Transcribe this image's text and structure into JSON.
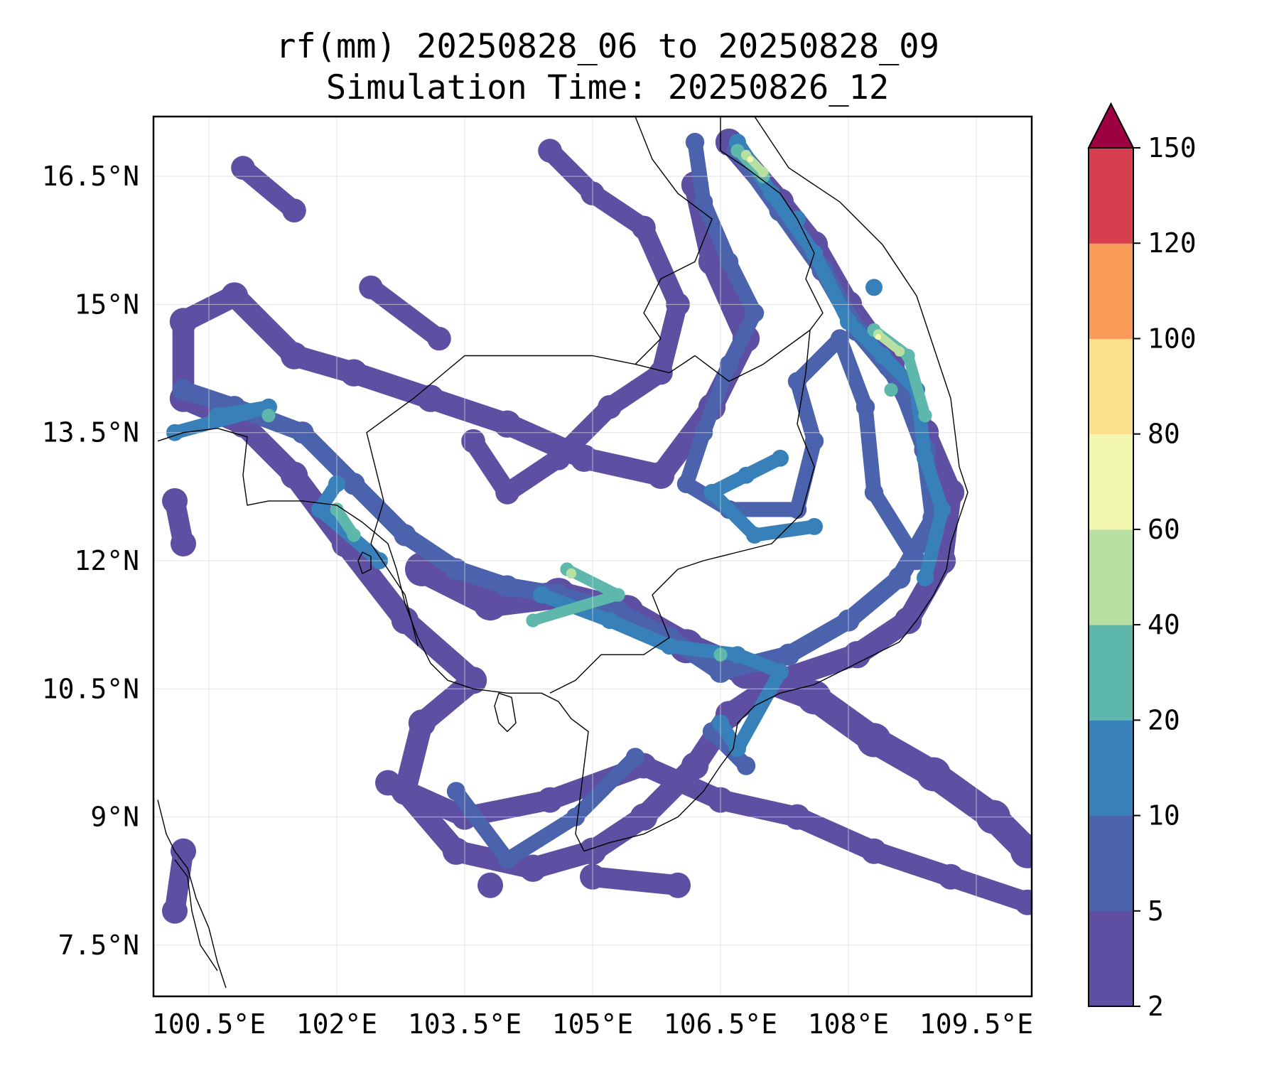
{
  "title": {
    "line1": "rf(mm) 20250828_06 to 20250828_09",
    "line2": "Simulation Time: 20250826_12"
  },
  "map": {
    "lon_range": [
      99.85,
      110.15
    ],
    "lat_range": [
      6.9,
      17.2
    ],
    "lon_ticks": [
      {
        "value": 100.5,
        "label": "100.5°E"
      },
      {
        "value": 102,
        "label": "102°E"
      },
      {
        "value": 103.5,
        "label": "103.5°E"
      },
      {
        "value": 105,
        "label": "105°E"
      },
      {
        "value": 106.5,
        "label": "106.5°E"
      },
      {
        "value": 108,
        "label": "108°E"
      },
      {
        "value": 109.5,
        "label": "109.5°E"
      }
    ],
    "lat_ticks": [
      {
        "value": 16.5,
        "label": "16.5°N"
      },
      {
        "value": 15,
        "label": "15°N"
      },
      {
        "value": 13.5,
        "label": "13.5°N"
      },
      {
        "value": 12,
        "label": "12°N"
      },
      {
        "value": 10.5,
        "label": "10.5°N"
      },
      {
        "value": 9,
        "label": "9°N"
      },
      {
        "value": 7.5,
        "label": "7.5°N"
      }
    ],
    "gridlines": true,
    "coastline_color": "#000000"
  },
  "colorbar": {
    "levels": [
      2,
      5,
      10,
      20,
      40,
      60,
      80,
      100,
      120,
      150
    ],
    "labels": [
      "2",
      "5",
      "10",
      "20",
      "40",
      "60",
      "80",
      "100",
      "120",
      "150"
    ],
    "colors": [
      "#5e4fa2",
      "#4b62ad",
      "#3880b9",
      "#5db8ab",
      "#b7e0a2",
      "#f2f8b0",
      "#fde08b",
      "#f99b59",
      "#d6404e"
    ],
    "extend_color": "#9e0142",
    "extend": "max"
  },
  "rain_fields": [
    {
      "level": 2,
      "points": [
        [
          106.6,
          16.9
        ],
        [
          107.2,
          16.2
        ],
        [
          107.6,
          15.7
        ],
        [
          108.0,
          15.0
        ],
        [
          108.5,
          14.3
        ],
        [
          108.9,
          13.5
        ],
        [
          109.2,
          12.8
        ],
        [
          109.1,
          12.0
        ],
        [
          108.7,
          11.3
        ],
        [
          108.1,
          10.9
        ],
        [
          107.2,
          10.6
        ],
        [
          106.6,
          10.2
        ],
        [
          106.2,
          9.6
        ],
        [
          105.6,
          9.0
        ],
        [
          105.0,
          8.6
        ],
        [
          104.3,
          8.4
        ],
        [
          103.4,
          8.6
        ],
        [
          102.8,
          9.3
        ],
        [
          103.0,
          10.1
        ],
        [
          103.6,
          10.6
        ],
        [
          102.8,
          11.3
        ],
        [
          102.1,
          12.2
        ],
        [
          101.5,
          13.0
        ],
        [
          100.9,
          13.6
        ],
        [
          100.2,
          13.9
        ],
        [
          100.2,
          14.8
        ],
        [
          100.8,
          15.1
        ],
        [
          101.5,
          14.4
        ],
        [
          102.2,
          14.2
        ],
        [
          103.1,
          13.9
        ],
        [
          104.0,
          13.6
        ],
        [
          104.9,
          13.2
        ],
        [
          105.8,
          13.0
        ],
        [
          106.4,
          13.8
        ],
        [
          106.8,
          14.6
        ],
        [
          106.4,
          15.5
        ],
        [
          106.2,
          16.4
        ]
      ],
      "r": 0.16
    },
    {
      "level": 2,
      "points": [
        [
          103.0,
          11.9
        ],
        [
          103.8,
          11.5
        ],
        [
          104.6,
          11.6
        ],
        [
          105.4,
          11.4
        ],
        [
          106.1,
          11.0
        ],
        [
          106.8,
          10.7
        ],
        [
          107.6,
          10.4
        ],
        [
          108.3,
          9.9
        ],
        [
          109.0,
          9.5
        ],
        [
          109.7,
          9.0
        ],
        [
          110.1,
          8.6
        ]
      ],
      "r": 0.2
    },
    {
      "level": 2,
      "points": [
        [
          104.5,
          16.8
        ],
        [
          105.0,
          16.3
        ],
        [
          105.6,
          15.9
        ],
        [
          106.0,
          15.0
        ],
        [
          105.8,
          14.2
        ],
        [
          105.2,
          13.8
        ],
        [
          104.6,
          13.2
        ],
        [
          104.0,
          12.8
        ],
        [
          103.6,
          13.4
        ],
        [
          103.2,
          14.6
        ],
        [
          102.4,
          15.2
        ],
        [
          101.5,
          16.1
        ],
        [
          100.9,
          16.6
        ]
      ],
      "r": 0.14
    },
    {
      "level": 2,
      "points": [
        [
          102.6,
          9.4
        ],
        [
          103.5,
          9.0
        ],
        [
          104.5,
          9.2
        ],
        [
          105.6,
          9.6
        ],
        [
          106.5,
          9.2
        ],
        [
          107.4,
          9.0
        ],
        [
          108.3,
          8.6
        ],
        [
          109.2,
          8.3
        ],
        [
          110.1,
          8.0
        ],
        [
          106.0,
          8.2
        ],
        [
          105.0,
          8.3
        ],
        [
          103.8,
          8.2
        ],
        [
          100.1,
          7.9
        ],
        [
          100.2,
          8.6
        ],
        [
          100.1,
          12.7
        ],
        [
          100.2,
          12.2
        ]
      ],
      "r": 0.15
    },
    {
      "level": 5,
      "points": [
        [
          106.7,
          16.8
        ],
        [
          107.2,
          16.1
        ],
        [
          107.7,
          15.4
        ],
        [
          108.1,
          14.7
        ],
        [
          108.6,
          14.1
        ],
        [
          108.9,
          13.3
        ],
        [
          109.0,
          12.5
        ],
        [
          108.6,
          11.8
        ],
        [
          108.0,
          11.3
        ],
        [
          107.3,
          10.9
        ],
        [
          106.5,
          10.7
        ],
        [
          105.9,
          11.1
        ],
        [
          105.3,
          11.4
        ],
        [
          104.6,
          11.6
        ],
        [
          104.0,
          11.7
        ],
        [
          103.4,
          11.9
        ],
        [
          102.8,
          12.3
        ],
        [
          102.2,
          12.9
        ],
        [
          101.6,
          13.5
        ],
        [
          100.8,
          13.8
        ],
        [
          100.2,
          14.0
        ]
      ],
      "r": 0.13
    },
    {
      "level": 5,
      "points": [
        [
          106.2,
          16.9
        ],
        [
          106.3,
          16.2
        ],
        [
          106.6,
          15.5
        ],
        [
          106.9,
          14.9
        ],
        [
          106.6,
          14.3
        ],
        [
          106.3,
          13.5
        ],
        [
          106.1,
          12.9
        ],
        [
          106.6,
          12.6
        ],
        [
          107.4,
          12.6
        ],
        [
          107.6,
          13.4
        ],
        [
          107.4,
          14.1
        ],
        [
          107.9,
          14.6
        ],
        [
          108.2,
          13.8
        ],
        [
          108.3,
          12.8
        ],
        [
          108.8,
          12.0
        ],
        [
          105.5,
          9.7
        ],
        [
          104.8,
          9.0
        ],
        [
          104.0,
          8.5
        ],
        [
          103.4,
          9.3
        ],
        [
          106.8,
          9.6
        ],
        [
          106.4,
          10.0
        ]
      ],
      "r": 0.11
    },
    {
      "level": 10,
      "points": [
        [
          106.7,
          16.9
        ],
        [
          107.1,
          16.3
        ],
        [
          107.6,
          15.6
        ],
        [
          108.0,
          14.8
        ],
        [
          108.4,
          14.4
        ],
        [
          108.8,
          14.0
        ],
        [
          108.9,
          13.2
        ],
        [
          109.1,
          12.6
        ],
        [
          108.9,
          11.8
        ],
        [
          106.8,
          13.0
        ],
        [
          107.2,
          13.2
        ],
        [
          106.4,
          12.8
        ],
        [
          106.9,
          12.3
        ],
        [
          107.6,
          12.4
        ],
        [
          104.4,
          11.6
        ],
        [
          105.2,
          11.3
        ],
        [
          105.9,
          11.0
        ],
        [
          106.7,
          10.9
        ],
        [
          107.2,
          10.7
        ],
        [
          106.7,
          9.8
        ],
        [
          106.5,
          10.1
        ],
        [
          102.0,
          12.9
        ],
        [
          101.8,
          12.6
        ],
        [
          102.5,
          12.0
        ],
        [
          100.6,
          13.7
        ],
        [
          101.2,
          13.8
        ],
        [
          100.1,
          13.5
        ],
        [
          107.4,
          16.0
        ],
        [
          108.3,
          15.2
        ]
      ],
      "r": 0.1
    },
    {
      "level": 20,
      "points": [
        [
          106.7,
          16.8
        ],
        [
          107.0,
          16.5
        ],
        [
          108.3,
          14.7
        ],
        [
          108.7,
          14.4
        ],
        [
          108.9,
          13.7
        ],
        [
          104.7,
          11.9
        ],
        [
          105.3,
          11.6
        ],
        [
          104.3,
          11.3
        ],
        [
          106.5,
          10.9
        ],
        [
          102.0,
          12.6
        ],
        [
          102.2,
          12.3
        ],
        [
          101.2,
          13.7
        ],
        [
          108.5,
          14.0
        ]
      ],
      "r": 0.08
    },
    {
      "level": 40,
      "points": [
        [
          106.8,
          16.75
        ],
        [
          107.0,
          16.55
        ],
        [
          108.35,
          14.65
        ],
        [
          108.6,
          14.45
        ],
        [
          104.75,
          11.85
        ]
      ],
      "r": 0.06
    },
    {
      "level": 60,
      "points": [
        [
          106.85,
          16.7
        ],
        [
          108.35,
          14.62
        ]
      ],
      "r": 0.035
    }
  ],
  "coastlines": [
    {
      "name": "vietnam-coast",
      "closed": false,
      "points": [
        [
          106.9,
          17.2
        ],
        [
          107.1,
          16.9
        ],
        [
          107.3,
          16.6
        ],
        [
          107.6,
          16.4
        ],
        [
          107.9,
          16.2
        ],
        [
          108.1,
          16.0
        ],
        [
          108.4,
          15.7
        ],
        [
          108.6,
          15.4
        ],
        [
          108.8,
          15.1
        ],
        [
          108.9,
          14.8
        ],
        [
          109.0,
          14.5
        ],
        [
          109.1,
          14.2
        ],
        [
          109.2,
          13.9
        ],
        [
          109.25,
          13.5
        ],
        [
          109.3,
          13.1
        ],
        [
          109.4,
          12.8
        ],
        [
          109.3,
          12.5
        ],
        [
          109.2,
          12.2
        ],
        [
          109.15,
          11.9
        ],
        [
          109.0,
          11.6
        ],
        [
          108.8,
          11.3
        ],
        [
          108.6,
          11.05
        ],
        [
          108.3,
          10.9
        ],
        [
          108.0,
          10.75
        ],
        [
          107.6,
          10.55
        ],
        [
          107.2,
          10.45
        ],
        [
          106.9,
          10.3
        ],
        [
          106.7,
          10.1
        ],
        [
          106.65,
          9.8
        ],
        [
          106.5,
          9.6
        ],
        [
          106.3,
          9.3
        ],
        [
          106.0,
          9.0
        ],
        [
          105.6,
          8.8
        ],
        [
          105.2,
          8.7
        ],
        [
          104.9,
          8.6
        ]
      ]
    },
    {
      "name": "mekong-west-coast",
      "closed": false,
      "points": [
        [
          104.9,
          8.6
        ],
        [
          104.8,
          8.8
        ],
        [
          104.85,
          9.2
        ],
        [
          104.9,
          9.6
        ],
        [
          104.95,
          10.0
        ],
        [
          104.75,
          10.15
        ],
        [
          104.6,
          10.35
        ],
        [
          104.4,
          10.45
        ],
        [
          104.0,
          10.45
        ],
        [
          103.6,
          10.5
        ],
        [
          103.3,
          10.6
        ],
        [
          103.1,
          10.8
        ],
        [
          102.95,
          11.1
        ],
        [
          102.8,
          11.5
        ],
        [
          102.7,
          11.9
        ],
        [
          102.6,
          12.2
        ],
        [
          102.3,
          12.45
        ],
        [
          102.0,
          12.65
        ],
        [
          101.6,
          12.7
        ],
        [
          101.2,
          12.7
        ],
        [
          100.95,
          12.65
        ],
        [
          100.9,
          13.0
        ],
        [
          100.95,
          13.45
        ],
        [
          100.6,
          13.55
        ],
        [
          100.2,
          13.5
        ],
        [
          99.9,
          13.4
        ]
      ]
    },
    {
      "name": "gulf-west-coast",
      "closed": false,
      "points": [
        [
          99.9,
          9.2
        ],
        [
          100.0,
          8.8
        ],
        [
          100.1,
          8.6
        ],
        [
          100.25,
          8.4
        ],
        [
          100.35,
          8.05
        ],
        [
          100.5,
          7.7
        ],
        [
          100.6,
          7.3
        ],
        [
          100.7,
          7.0
        ]
      ]
    },
    {
      "name": "cambodia-thailand-border",
      "closed": false,
      "points": [
        [
          102.95,
          11.0
        ],
        [
          102.8,
          11.6
        ],
        [
          102.4,
          12.2
        ],
        [
          102.55,
          12.7
        ],
        [
          102.35,
          13.5
        ],
        [
          102.9,
          13.9
        ],
        [
          103.5,
          14.4
        ],
        [
          104.3,
          14.4
        ],
        [
          105.0,
          14.4
        ],
        [
          105.5,
          14.3
        ],
        [
          105.9,
          14.2
        ],
        [
          106.2,
          14.4
        ],
        [
          106.6,
          14.1
        ],
        [
          107.0,
          14.3
        ],
        [
          107.55,
          14.7
        ]
      ]
    },
    {
      "name": "cambodia-vietnam-border",
      "closed": false,
      "points": [
        [
          107.55,
          14.7
        ],
        [
          107.5,
          14.2
        ],
        [
          107.4,
          13.6
        ],
        [
          107.6,
          13.1
        ],
        [
          107.45,
          12.55
        ],
        [
          107.1,
          12.2
        ],
        [
          106.7,
          12.1
        ],
        [
          106.3,
          12.0
        ],
        [
          106.0,
          11.9
        ],
        [
          105.7,
          11.6
        ],
        [
          105.9,
          11.1
        ],
        [
          105.6,
          10.9
        ],
        [
          105.1,
          10.9
        ],
        [
          104.8,
          10.6
        ],
        [
          104.5,
          10.45
        ]
      ]
    },
    {
      "name": "laos-border-north",
      "closed": false,
      "points": [
        [
          105.5,
          17.2
        ],
        [
          105.7,
          16.7
        ],
        [
          106.0,
          16.3
        ],
        [
          106.4,
          16.0
        ],
        [
          106.2,
          15.5
        ],
        [
          105.8,
          15.3
        ],
        [
          105.6,
          14.9
        ],
        [
          105.8,
          14.6
        ],
        [
          105.5,
          14.3
        ]
      ]
    },
    {
      "name": "laos-vietnam-border",
      "closed": false,
      "points": [
        [
          106.5,
          17.2
        ],
        [
          106.5,
          16.8
        ],
        [
          106.8,
          16.6
        ],
        [
          107.2,
          16.3
        ],
        [
          107.4,
          16.0
        ],
        [
          107.6,
          15.6
        ],
        [
          107.5,
          15.3
        ],
        [
          107.7,
          14.9
        ],
        [
          107.55,
          14.7
        ]
      ]
    },
    {
      "name": "malay-peninsula-coast",
      "closed": false,
      "points": [
        [
          100.1,
          8.5
        ],
        [
          100.25,
          8.3
        ],
        [
          100.3,
          7.9
        ],
        [
          100.4,
          7.5
        ],
        [
          100.6,
          7.2
        ]
      ]
    },
    {
      "name": "phu-quoc-island",
      "closed": true,
      "points": [
        [
          103.9,
          10.45
        ],
        [
          104.05,
          10.4
        ],
        [
          104.1,
          10.1
        ],
        [
          104.0,
          10.0
        ],
        [
          103.9,
          10.1
        ],
        [
          103.85,
          10.3
        ]
      ]
    },
    {
      "name": "koh-kong-islands",
      "closed": true,
      "points": [
        [
          102.3,
          12.1
        ],
        [
          102.4,
          12.05
        ],
        [
          102.4,
          11.9
        ],
        [
          102.3,
          11.85
        ],
        [
          102.25,
          12.0
        ]
      ]
    }
  ]
}
